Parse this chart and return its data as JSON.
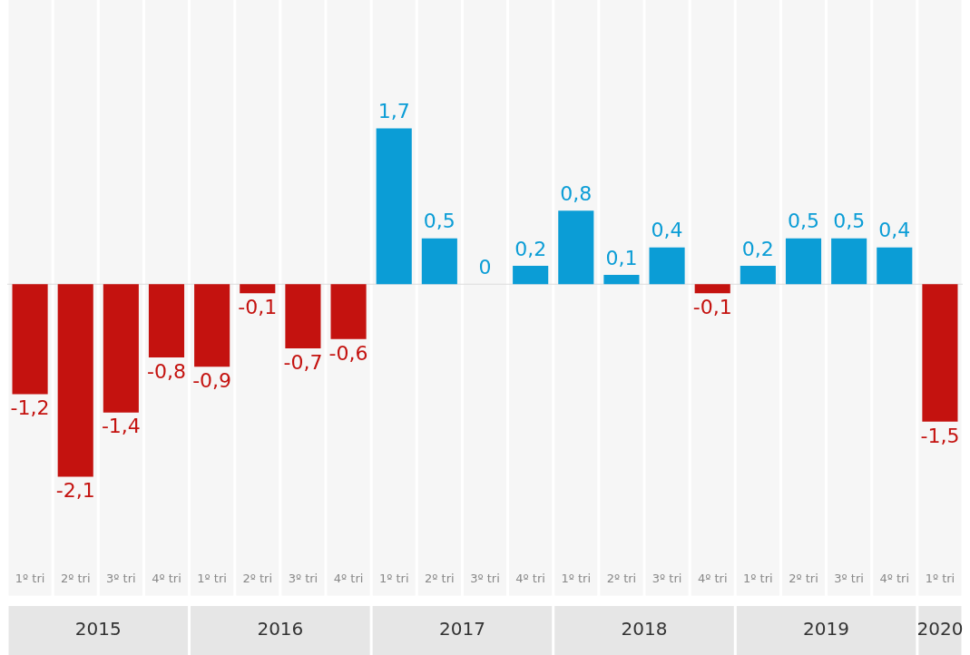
{
  "chart_data": {
    "type": "bar",
    "categories": [
      "1º tri",
      "2º tri",
      "3º tri",
      "4º tri",
      "1º tri",
      "2º tri",
      "3º tri",
      "4º tri",
      "1º tri",
      "2º tri",
      "3º tri",
      "4º tri",
      "1º tri",
      "2º tri",
      "3º tri",
      "4º tri",
      "1º tri",
      "2º tri",
      "3º tri",
      "4º tri",
      "1º tri"
    ],
    "values": [
      -1.2,
      -2.1,
      -1.4,
      -0.8,
      -0.9,
      -0.1,
      -0.7,
      -0.6,
      1.7,
      0.5,
      0,
      0.2,
      0.8,
      0.1,
      0.4,
      -0.1,
      0.2,
      0.5,
      0.5,
      0.4,
      -1.5
    ],
    "colors": [
      "#c4120f",
      "#c4120f",
      "#c4120f",
      "#c4120f",
      "#c4120f",
      "#c4120f",
      "#c4120f",
      "#c4120f",
      "#0b9dd6",
      "#0b9dd6",
      "#0b9dd6",
      "#0b9dd6",
      "#0b9dd6",
      "#0b9dd6",
      "#0b9dd6",
      "#c4120f",
      "#0b9dd6",
      "#0b9dd6",
      "#0b9dd6",
      "#0b9dd6",
      "#c4120f"
    ],
    "value_labels": [
      "-1,2",
      "-2,1",
      "-1,4",
      "-0,8",
      "-0,9",
      "-0,1",
      "-0,7",
      "-0,6",
      "1,7",
      "0,5",
      "0",
      "0,2",
      "0,8",
      "0,1",
      "0,4",
      "-0,1",
      "0,2",
      "0,5",
      "0,5",
      "0,4",
      "-1,5"
    ],
    "annotations": [
      "2015",
      "2016",
      "2017",
      "2018",
      "2019",
      "2020"
    ],
    "grid": false,
    "legend": false
  }
}
